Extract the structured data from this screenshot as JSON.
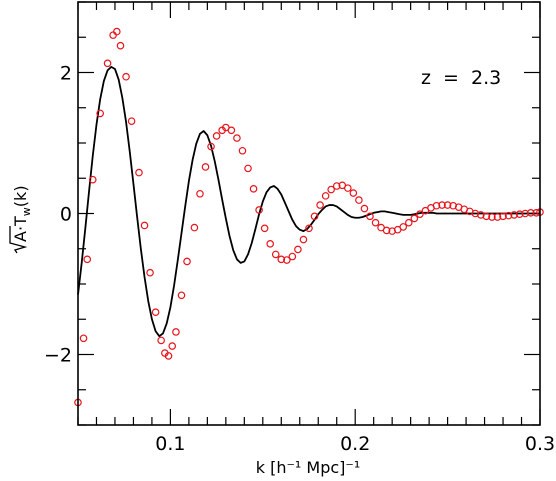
{
  "chart_data": {
    "type": "scatter",
    "xlabel": "k [h⁻¹ Mpc]⁻¹",
    "ylabel_prefix": "A·T",
    "ylabel_sub": "w",
    "ylabel_suffix": "(k)",
    "annotation": "z  =  2.3",
    "xlim": [
      0.05,
      0.3
    ],
    "ylim": [
      -3,
      3
    ],
    "x_major_ticks": [
      0.1,
      0.2,
      0.3
    ],
    "x_tick_labels": [
      "0.1",
      "0.2",
      "0.3"
    ],
    "x_minor_step": 0.01,
    "y_major_ticks": [
      -2,
      0,
      2
    ],
    "y_tick_labels": [
      "−2",
      "0",
      "2"
    ],
    "y_minor_step": 0.5,
    "grid": false,
    "series": [
      {
        "style": "line",
        "color": "#000000",
        "x": [
          0.05,
          0.052,
          0.054,
          0.056,
          0.058,
          0.06,
          0.062,
          0.064,
          0.066,
          0.068,
          0.07,
          0.072,
          0.074,
          0.076,
          0.078,
          0.08,
          0.082,
          0.084,
          0.086,
          0.088,
          0.09,
          0.092,
          0.094,
          0.096,
          0.098,
          0.1,
          0.102,
          0.104,
          0.106,
          0.108,
          0.11,
          0.112,
          0.114,
          0.116,
          0.118,
          0.12,
          0.122,
          0.124,
          0.126,
          0.128,
          0.13,
          0.132,
          0.134,
          0.136,
          0.138,
          0.14,
          0.142,
          0.144,
          0.146,
          0.148,
          0.15,
          0.152,
          0.154,
          0.156,
          0.158,
          0.16,
          0.162,
          0.164,
          0.166,
          0.168,
          0.17,
          0.172,
          0.174,
          0.176,
          0.178,
          0.18,
          0.182,
          0.184,
          0.186,
          0.188,
          0.19,
          0.192,
          0.194,
          0.196,
          0.198,
          0.2,
          0.202,
          0.204,
          0.206,
          0.208,
          0.21,
          0.212,
          0.214,
          0.216,
          0.218,
          0.22,
          0.222,
          0.224,
          0.226,
          0.228,
          0.23,
          0.232,
          0.234,
          0.236,
          0.238,
          0.24,
          0.242,
          0.244,
          0.246,
          0.248,
          0.25,
          0.252,
          0.254,
          0.256,
          0.258,
          0.26,
          0.262,
          0.264,
          0.266,
          0.268,
          0.27,
          0.272,
          0.274,
          0.276,
          0.278,
          0.28,
          0.282,
          0.284,
          0.286,
          0.288,
          0.29,
          0.292,
          0.294,
          0.296,
          0.298,
          0.3
        ],
        "y": [
          -1.15,
          -0.7,
          -0.2,
          0.32,
          0.82,
          1.26,
          1.62,
          1.88,
          2.03,
          2.08,
          2.05,
          1.9,
          1.64,
          1.3,
          0.88,
          0.42,
          -0.05,
          -0.5,
          -0.9,
          -1.24,
          -1.5,
          -1.67,
          -1.74,
          -1.7,
          -1.56,
          -1.33,
          -1.02,
          -0.66,
          -0.28,
          0.1,
          0.46,
          0.76,
          0.99,
          1.13,
          1.17,
          1.11,
          0.96,
          0.74,
          0.48,
          0.2,
          -0.07,
          -0.32,
          -0.52,
          -0.65,
          -0.7,
          -0.68,
          -0.58,
          -0.42,
          -0.22,
          -0.01,
          0.17,
          0.3,
          0.37,
          0.39,
          0.35,
          0.27,
          0.15,
          0.03,
          -0.09,
          -0.18,
          -0.23,
          -0.25,
          -0.22,
          -0.16,
          -0.09,
          -0.01,
          0.05,
          0.1,
          0.12,
          0.12,
          0.1,
          0.06,
          0.02,
          -0.02,
          -0.05,
          -0.06,
          -0.06,
          -0.05,
          -0.03,
          -0.01,
          0.01,
          0.02,
          0.03,
          0.03,
          0.02,
          0.01,
          0.0,
          -0.01,
          -0.02,
          -0.02,
          -0.02,
          -0.01,
          0.0,
          0.01,
          0.01,
          0.01,
          0.01,
          0.0,
          0.0,
          0.0,
          0.0,
          0.0,
          0.0,
          0.0,
          0.0,
          0.0,
          0.0,
          0.0,
          0.0,
          0.0,
          0.0,
          0.0,
          0.0,
          0.0,
          0.0,
          0.0,
          0.0,
          0.0,
          0.0,
          0.0,
          0.0,
          0.0,
          0.0,
          0.0,
          0.0,
          0.0
        ]
      },
      {
        "style": "open-circle",
        "color": "#e8141b",
        "x": [
          0.05,
          0.053,
          0.055,
          0.058,
          0.062,
          0.066,
          0.069,
          0.071,
          0.073,
          0.076,
          0.079,
          0.083,
          0.086,
          0.089,
          0.092,
          0.095,
          0.097,
          0.099,
          0.101,
          0.103,
          0.106,
          0.109,
          0.113,
          0.116,
          0.119,
          0.122,
          0.125,
          0.128,
          0.13,
          0.133,
          0.136,
          0.139,
          0.142,
          0.145,
          0.148,
          0.151,
          0.154,
          0.157,
          0.16,
          0.163,
          0.166,
          0.169,
          0.172,
          0.175,
          0.178,
          0.181,
          0.184,
          0.187,
          0.19,
          0.193,
          0.196,
          0.199,
          0.202,
          0.205,
          0.208,
          0.211,
          0.214,
          0.217,
          0.22,
          0.223,
          0.226,
          0.229,
          0.232,
          0.235,
          0.238,
          0.241,
          0.244,
          0.247,
          0.25,
          0.253,
          0.256,
          0.259,
          0.262,
          0.265,
          0.268,
          0.271,
          0.274,
          0.277,
          0.28,
          0.283,
          0.286,
          0.289,
          0.292,
          0.295,
          0.298,
          0.3
        ],
        "y": [
          -2.68,
          -1.77,
          -0.65,
          0.48,
          1.42,
          2.13,
          2.53,
          2.58,
          2.38,
          1.94,
          1.31,
          0.58,
          -0.17,
          -0.84,
          -1.4,
          -1.8,
          -1.98,
          -2.02,
          -1.88,
          -1.68,
          -1.16,
          -0.68,
          -0.2,
          0.28,
          0.66,
          0.95,
          1.1,
          1.18,
          1.22,
          1.18,
          1.07,
          0.89,
          0.64,
          0.35,
          0.05,
          -0.21,
          -0.43,
          -0.58,
          -0.65,
          -0.66,
          -0.61,
          -0.51,
          -0.37,
          -0.21,
          -0.04,
          0.12,
          0.25,
          0.34,
          0.39,
          0.4,
          0.36,
          0.29,
          0.19,
          0.07,
          -0.04,
          -0.13,
          -0.2,
          -0.24,
          -0.25,
          -0.23,
          -0.19,
          -0.13,
          -0.07,
          -0.01,
          0.04,
          0.08,
          0.11,
          0.12,
          0.12,
          0.11,
          0.09,
          0.06,
          0.03,
          0.0,
          -0.02,
          -0.04,
          -0.05,
          -0.05,
          -0.04,
          -0.03,
          -0.02,
          -0.01,
          0.0,
          0.01,
          0.01,
          0.02
        ]
      }
    ]
  }
}
